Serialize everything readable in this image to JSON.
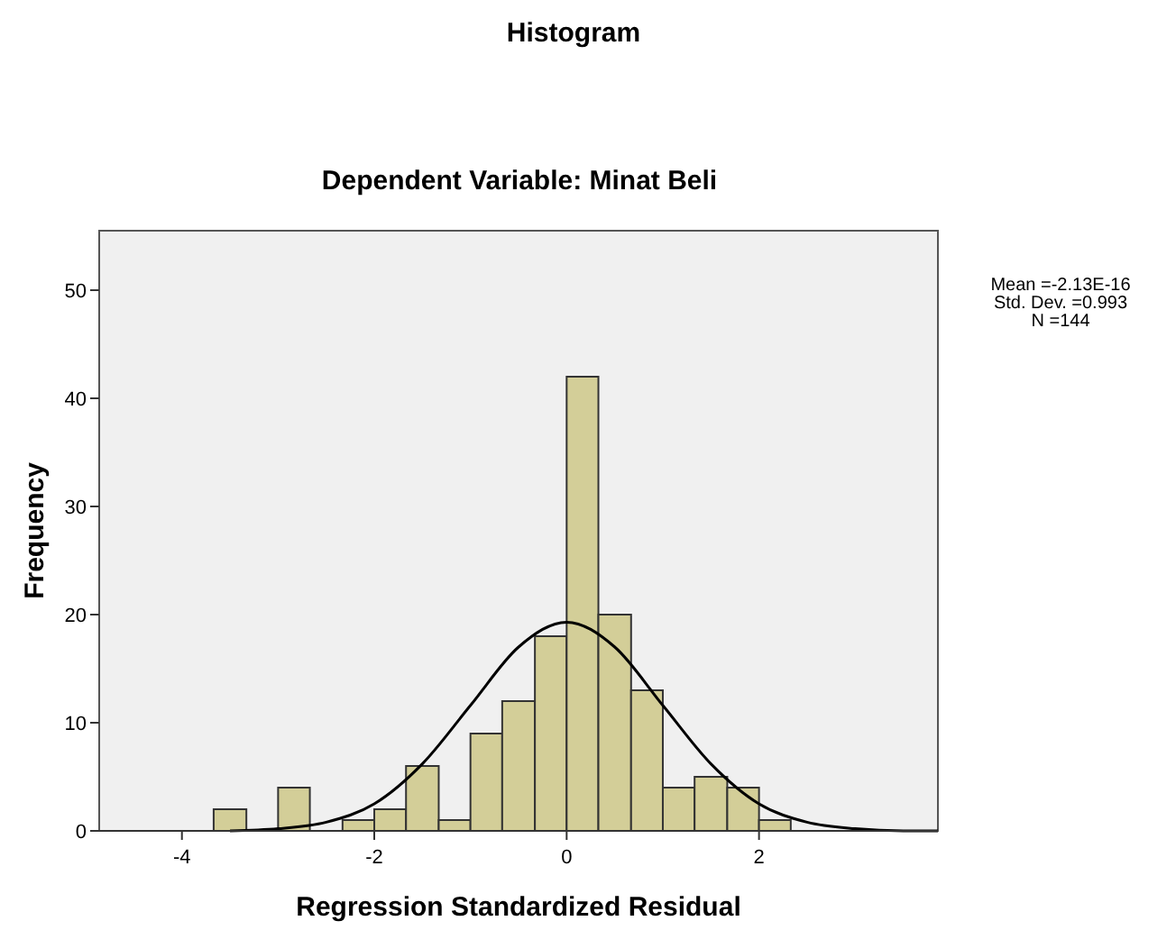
{
  "chart_data": {
    "type": "histogram",
    "title": "Histogram",
    "subtitle": "Dependent Variable: Minat Beli",
    "xlabel": "Regression Standardized Residual",
    "ylabel": "Frequency",
    "bins": [
      -3.67,
      -3.33,
      -3,
      -2.67,
      -2.33,
      -2,
      -1.67,
      -1.33,
      -1,
      -0.67,
      -0.33,
      0,
      0.33,
      0.67,
      1,
      1.33,
      1.67,
      2,
      2.33
    ],
    "values": [
      2,
      0,
      4,
      0,
      1,
      2,
      6,
      1,
      9,
      12,
      18,
      42,
      20,
      13,
      4,
      5,
      4,
      1
    ],
    "color": "#d3ce98",
    "series": [
      {
        "type": "line",
        "color": "#000000",
        "x": [
          -3.5,
          -3,
          -2.5,
          -2,
          -1.5,
          -1,
          -0.5,
          0,
          0.5,
          1,
          1.5,
          2,
          2.5,
          3,
          3.5,
          3.86
        ],
        "values": [
          0,
          0.2,
          0.8,
          2.5,
          6.2,
          11.6,
          17,
          19.3,
          17,
          11.6,
          6.2,
          2.5,
          0.8,
          0.2,
          0,
          0
        ]
      }
    ],
    "xlim": [
      -4.86,
      3.86
    ],
    "xticks": [
      -4,
      -2,
      0,
      2
    ],
    "ylim": [
      0,
      55.5
    ],
    "yticks": [
      0,
      10,
      20,
      30,
      40,
      50
    ],
    "grid": false,
    "annotations": [
      "Mean =-2.13E-16",
      "Std. Dev. =0.993",
      "N =144"
    ]
  }
}
